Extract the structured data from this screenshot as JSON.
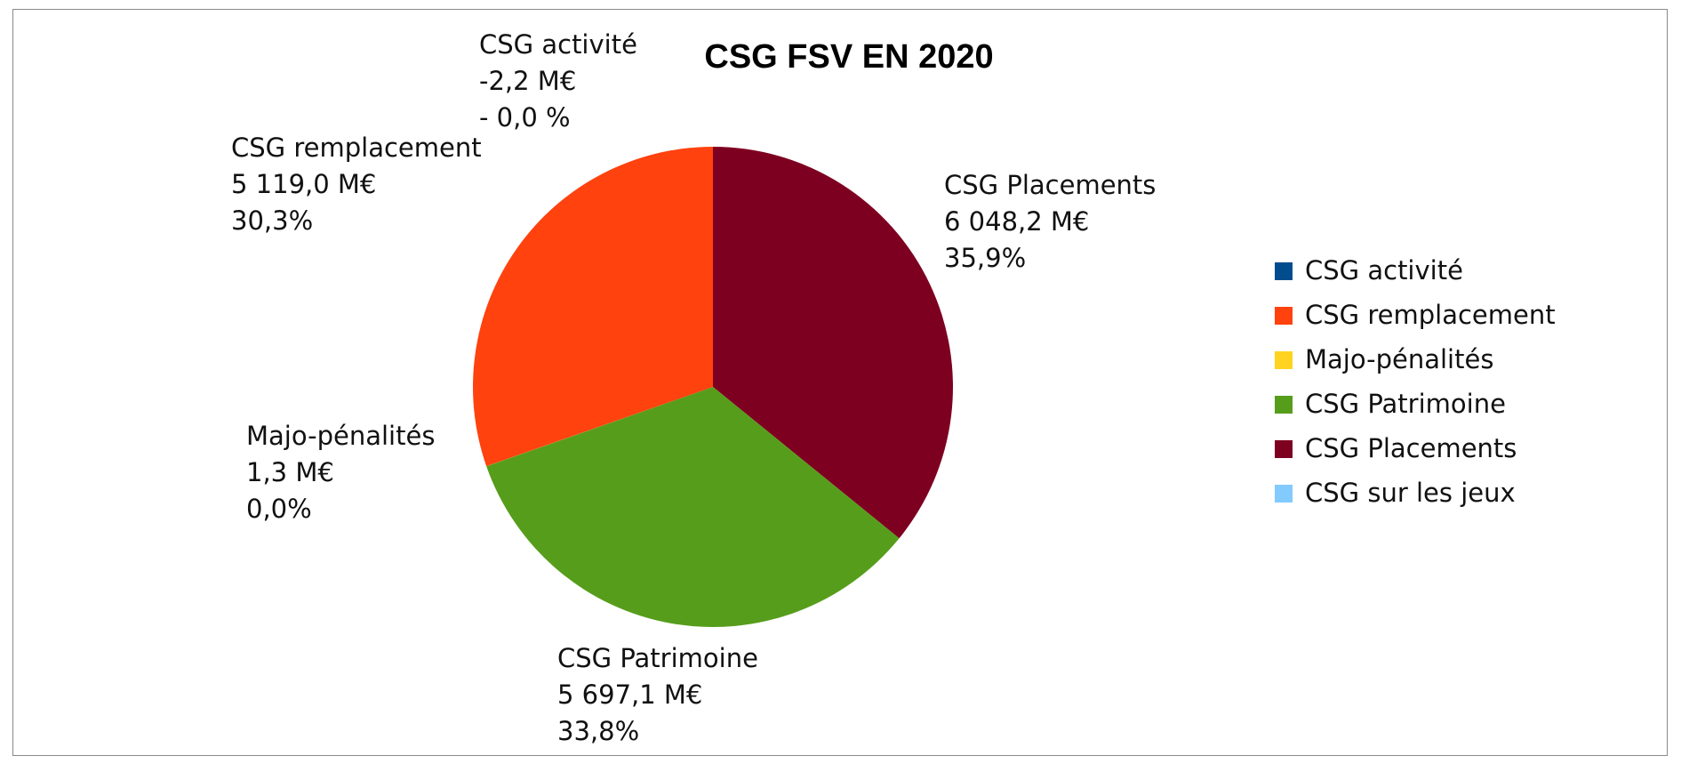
{
  "chart_data": {
    "type": "pie",
    "title": "CSG FSV EN 2020",
    "unit": "M€",
    "slices": [
      {
        "name": "CSG activité",
        "value": -2.2,
        "value_label": "-2,2 M€",
        "percent_label": "- 0,0 %",
        "color": "#004C8C"
      },
      {
        "name": "CSG remplacement",
        "value": 5119.0,
        "value_label": "5 119,0 M€",
        "percent_label": "30,3%",
        "color": "#FF420E"
      },
      {
        "name": "Majo-pénalités",
        "value": 1.3,
        "value_label": "1,3 M€",
        "percent_label": "0,0%",
        "color": "#FFD320"
      },
      {
        "name": "CSG Patrimoine",
        "value": 5697.1,
        "value_label": "5 697,1 M€",
        "percent_label": "33,8%",
        "color": "#579D1C"
      },
      {
        "name": "CSG Placements",
        "value": 6048.2,
        "value_label": "6 048,2 M€",
        "percent_label": "35,9%",
        "color": "#7E0021"
      },
      {
        "name": "CSG sur les jeux",
        "value": 0,
        "value_label": "",
        "percent_label": "",
        "color": "#83CAFF"
      }
    ],
    "legend_position": "right"
  }
}
